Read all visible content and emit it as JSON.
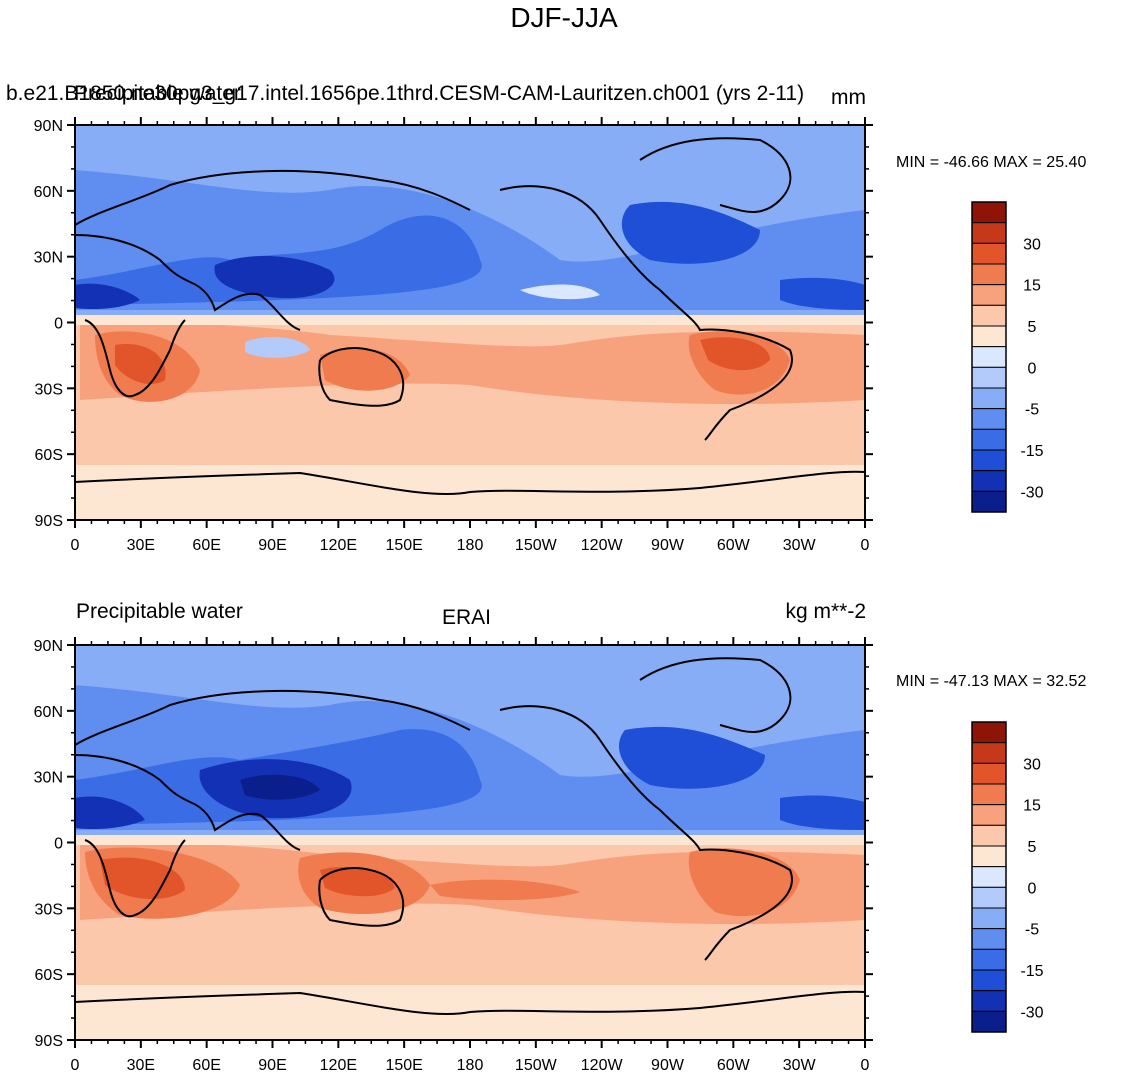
{
  "figure_title": "DJF-JJA",
  "colors": {
    "levels": [
      "#0a1e8c",
      "#1231b4",
      "#1f4fd6",
      "#3a6ce6",
      "#5f8ef0",
      "#86adf6",
      "#b3cbfa",
      "#dbe7fc",
      "#fde6d2",
      "#fbc8ac",
      "#f7a27c",
      "#f07b4f",
      "#e2552a",
      "#c5381a",
      "#8f1408"
    ],
    "land_outline": "#000000"
  },
  "chart_data": [
    {
      "type": "heatmap",
      "id": "model",
      "left_title": "b.e21.B1850.ne30pg3_g17.intel.1656pe.1thrd.CESM-CAM-Lauritzen.ch001 (yrs 2-11)",
      "left_subtitle": "Precipitable water",
      "center_title": "",
      "units": "mm",
      "min_label": "MIN = -46.66",
      "max_label": "MAX =  25.40",
      "x_ticks": [
        "0",
        "30E",
        "60E",
        "90E",
        "120E",
        "150E",
        "180",
        "150W",
        "120W",
        "90W",
        "60W",
        "30W",
        "0"
      ],
      "y_ticks": [
        "90N",
        "60N",
        "30N",
        "0",
        "30S",
        "60S",
        "90S"
      ],
      "xlim": [
        0,
        360
      ],
      "ylim": [
        -90,
        90
      ],
      "colorbar_levels": [
        -35,
        -30,
        -25,
        -20,
        -15,
        -10,
        -5,
        0,
        5,
        10,
        15,
        20,
        25,
        30,
        35
      ],
      "colorbar_labels": [
        "30",
        "15",
        "5",
        "0",
        "-5",
        "-15",
        "-30"
      ],
      "field_summary": "Negative (drier in DJF than JJA) over the Northern Hemisphere, strongest over South/East Asia, North America and the tropical North Atlantic; positive over the Southern Hemisphere, strongest over southern Africa, Australia and South America."
    },
    {
      "type": "heatmap",
      "id": "obs",
      "left_title": "Precipitable water",
      "left_subtitle": "",
      "center_title": "ERAI",
      "units": "kg m**-2",
      "min_label": "MIN = -47.13",
      "max_label": "MAX =  32.52",
      "x_ticks": [
        "0",
        "30E",
        "60E",
        "90E",
        "120E",
        "150E",
        "180",
        "150W",
        "120W",
        "90W",
        "60W",
        "30W",
        "0"
      ],
      "y_ticks": [
        "90N",
        "60N",
        "30N",
        "0",
        "30S",
        "60S",
        "90S"
      ],
      "xlim": [
        0,
        360
      ],
      "ylim": [
        -90,
        90
      ],
      "colorbar_levels": [
        -35,
        -30,
        -25,
        -20,
        -15,
        -10,
        -5,
        0,
        5,
        10,
        15,
        20,
        25,
        30,
        35
      ],
      "colorbar_labels": [
        "30",
        "15",
        "5",
        "0",
        "-5",
        "-15",
        "-30"
      ],
      "field_summary": "Similar pattern to the model: strong negative anomalies over South/East Asia and North America; stronger positive anomalies over southern Africa, Australia and South America."
    }
  ]
}
